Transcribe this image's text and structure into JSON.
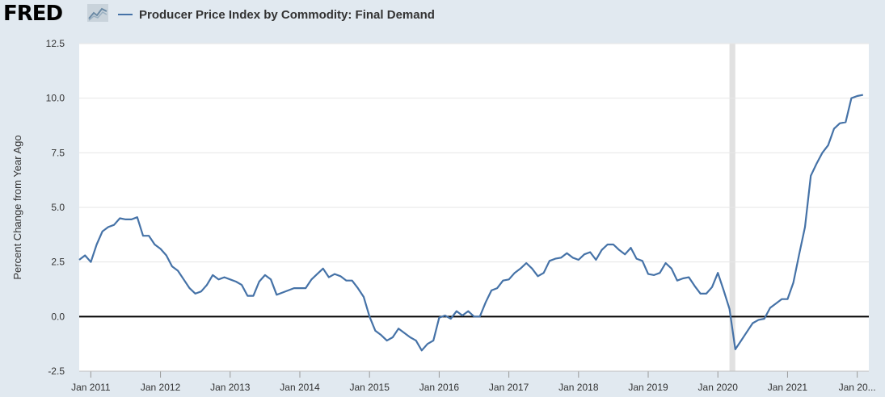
{
  "header": {
    "logo_text": "FRED",
    "logo_icon": "chart-line-icon"
  },
  "chart_data": {
    "type": "line",
    "ylabel": "Percent Change from Year Ago",
    "ylim": [
      -2.5,
      12.5
    ],
    "y_ticks": [
      -2.5,
      0.0,
      2.5,
      5.0,
      7.5,
      10.0,
      12.5
    ],
    "y_tick_labels": [
      "-2.5",
      "0.0",
      "2.5",
      "5.0",
      "7.5",
      "10.0",
      "12.5"
    ],
    "x_tick_labels": [
      "Jan 2011",
      "Jan 2012",
      "Jan 2013",
      "Jan 2014",
      "Jan 2015",
      "Jan 2016",
      "Jan 2017",
      "Jan 2018",
      "Jan 2019",
      "Jan 2020",
      "Jan 2021",
      "Jan 20..."
    ],
    "x_start": "2010-11",
    "x_end": "2022-03",
    "grid": "horizontal",
    "zero_line": true,
    "recession": {
      "start": "2020-03",
      "end": "2020-04",
      "color": "#e1e1e1"
    },
    "series": [
      {
        "name": "Producer Price Index by Commodity: Final Demand",
        "color": "#4572a7",
        "points": [
          [
            "2010-11",
            2.6
          ],
          [
            "2010-12",
            2.8
          ],
          [
            "2011-01",
            2.5
          ],
          [
            "2011-02",
            3.3
          ],
          [
            "2011-03",
            3.9
          ],
          [
            "2011-04",
            4.1
          ],
          [
            "2011-05",
            4.2
          ],
          [
            "2011-06",
            4.5
          ],
          [
            "2011-07",
            4.45
          ],
          [
            "2011-08",
            4.45
          ],
          [
            "2011-09",
            4.55
          ],
          [
            "2011-10",
            3.7
          ],
          [
            "2011-11",
            3.7
          ],
          [
            "2011-12",
            3.3
          ],
          [
            "2012-01",
            3.1
          ],
          [
            "2012-02",
            2.8
          ],
          [
            "2012-03",
            2.3
          ],
          [
            "2012-04",
            2.1
          ],
          [
            "2012-05",
            1.7
          ],
          [
            "2012-06",
            1.3
          ],
          [
            "2012-07",
            1.05
          ],
          [
            "2012-08",
            1.15
          ],
          [
            "2012-09",
            1.45
          ],
          [
            "2012-10",
            1.9
          ],
          [
            "2012-11",
            1.7
          ],
          [
            "2012-12",
            1.8
          ],
          [
            "2013-01",
            1.7
          ],
          [
            "2013-02",
            1.6
          ],
          [
            "2013-03",
            1.45
          ],
          [
            "2013-04",
            0.95
          ],
          [
            "2013-05",
            0.95
          ],
          [
            "2013-06",
            1.6
          ],
          [
            "2013-07",
            1.9
          ],
          [
            "2013-08",
            1.7
          ],
          [
            "2013-09",
            1.0
          ],
          [
            "2013-10",
            1.1
          ],
          [
            "2013-11",
            1.2
          ],
          [
            "2013-12",
            1.3
          ],
          [
            "2014-01",
            1.3
          ],
          [
            "2014-02",
            1.3
          ],
          [
            "2014-03",
            1.7
          ],
          [
            "2014-04",
            1.95
          ],
          [
            "2014-05",
            2.2
          ],
          [
            "2014-06",
            1.8
          ],
          [
            "2014-07",
            1.95
          ],
          [
            "2014-08",
            1.85
          ],
          [
            "2014-09",
            1.65
          ],
          [
            "2014-10",
            1.65
          ],
          [
            "2014-11",
            1.3
          ],
          [
            "2014-12",
            0.9
          ],
          [
            "2015-01",
            0.0
          ],
          [
            "2015-02",
            -0.65
          ],
          [
            "2015-03",
            -0.85
          ],
          [
            "2015-04",
            -1.1
          ],
          [
            "2015-05",
            -0.95
          ],
          [
            "2015-06",
            -0.55
          ],
          [
            "2015-07",
            -0.75
          ],
          [
            "2015-08",
            -0.95
          ],
          [
            "2015-09",
            -1.1
          ],
          [
            "2015-10",
            -1.55
          ],
          [
            "2015-11",
            -1.25
          ],
          [
            "2015-12",
            -1.1
          ],
          [
            "2016-01",
            -0.05
          ],
          [
            "2016-02",
            0.05
          ],
          [
            "2016-03",
            -0.1
          ],
          [
            "2016-04",
            0.25
          ],
          [
            "2016-05",
            0.05
          ],
          [
            "2016-06",
            0.25
          ],
          [
            "2016-07",
            0.0
          ],
          [
            "2016-08",
            0.0
          ],
          [
            "2016-09",
            0.65
          ],
          [
            "2016-10",
            1.2
          ],
          [
            "2016-11",
            1.3
          ],
          [
            "2016-12",
            1.65
          ],
          [
            "2017-01",
            1.7
          ],
          [
            "2017-02",
            2.0
          ],
          [
            "2017-03",
            2.2
          ],
          [
            "2017-04",
            2.45
          ],
          [
            "2017-05",
            2.2
          ],
          [
            "2017-06",
            1.85
          ],
          [
            "2017-07",
            2.0
          ],
          [
            "2017-08",
            2.55
          ],
          [
            "2017-09",
            2.65
          ],
          [
            "2017-10",
            2.7
          ],
          [
            "2017-11",
            2.9
          ],
          [
            "2017-12",
            2.7
          ],
          [
            "2018-01",
            2.6
          ],
          [
            "2018-02",
            2.85
          ],
          [
            "2018-03",
            2.95
          ],
          [
            "2018-04",
            2.6
          ],
          [
            "2018-05",
            3.05
          ],
          [
            "2018-06",
            3.3
          ],
          [
            "2018-07",
            3.3
          ],
          [
            "2018-08",
            3.05
          ],
          [
            "2018-09",
            2.85
          ],
          [
            "2018-10",
            3.15
          ],
          [
            "2018-11",
            2.65
          ],
          [
            "2018-12",
            2.55
          ],
          [
            "2019-01",
            1.95
          ],
          [
            "2019-02",
            1.9
          ],
          [
            "2019-03",
            2.0
          ],
          [
            "2019-04",
            2.45
          ],
          [
            "2019-05",
            2.2
          ],
          [
            "2019-06",
            1.65
          ],
          [
            "2019-07",
            1.75
          ],
          [
            "2019-08",
            1.8
          ],
          [
            "2019-09",
            1.4
          ],
          [
            "2019-10",
            1.05
          ],
          [
            "2019-11",
            1.05
          ],
          [
            "2019-12",
            1.35
          ],
          [
            "2020-01",
            2.0
          ],
          [
            "2020-02",
            1.2
          ],
          [
            "2020-03",
            0.35
          ],
          [
            "2020-04",
            -1.5
          ],
          [
            "2020-05",
            -1.1
          ],
          [
            "2020-06",
            -0.7
          ],
          [
            "2020-07",
            -0.3
          ],
          [
            "2020-08",
            -0.15
          ],
          [
            "2020-09",
            -0.1
          ],
          [
            "2020-10",
            0.4
          ],
          [
            "2020-11",
            0.6
          ],
          [
            "2020-12",
            0.8
          ],
          [
            "2021-01",
            0.8
          ],
          [
            "2021-02",
            1.55
          ],
          [
            "2021-03",
            2.85
          ],
          [
            "2021-04",
            4.1
          ],
          [
            "2021-05",
            6.45
          ],
          [
            "2021-06",
            7.0
          ],
          [
            "2021-07",
            7.5
          ],
          [
            "2021-08",
            7.85
          ],
          [
            "2021-09",
            8.6
          ],
          [
            "2021-10",
            8.85
          ],
          [
            "2021-11",
            8.9
          ],
          [
            "2021-12",
            10.0
          ],
          [
            "2022-01",
            10.1
          ],
          [
            "2022-02",
            10.15
          ]
        ]
      }
    ]
  }
}
